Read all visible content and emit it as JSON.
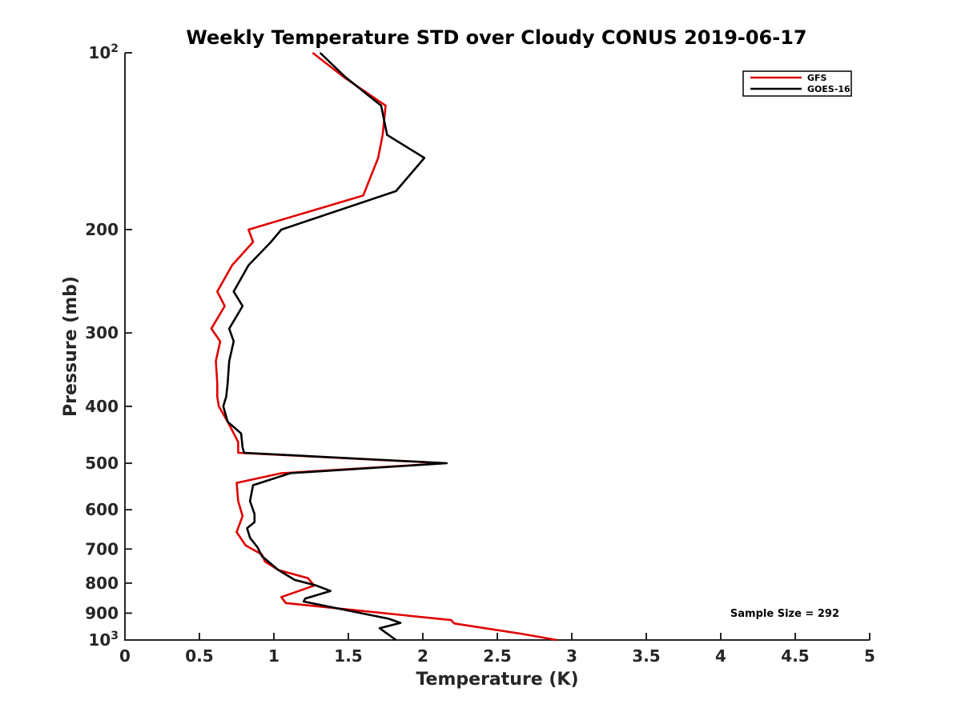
{
  "chart_data": {
    "type": "line",
    "title": "Weekly Temperature STD over Cloudy CONUS 2019-06-17",
    "xlabel": "Temperature (K)",
    "ylabel": "Pressure (mb)",
    "xlim": [
      0,
      5
    ],
    "ylim": [
      100,
      1000
    ],
    "y_scale": "log",
    "y_reversed": true,
    "grid": false,
    "legend_position": "top-right",
    "x_ticks": [
      {
        "value": 0,
        "label": "0"
      },
      {
        "value": 0.5,
        "label": "0.5"
      },
      {
        "value": 1,
        "label": "1"
      },
      {
        "value": 1.5,
        "label": "1.5"
      },
      {
        "value": 2,
        "label": "2"
      },
      {
        "value": 2.5,
        "label": "2.5"
      },
      {
        "value": 3,
        "label": "3"
      },
      {
        "value": 3.5,
        "label": "3.5"
      },
      {
        "value": 4,
        "label": "4"
      },
      {
        "value": 4.5,
        "label": "4.5"
      },
      {
        "value": 5,
        "label": "5"
      }
    ],
    "y_ticks": [
      {
        "value": 100,
        "label": "10",
        "sup": "2"
      },
      {
        "value": 200,
        "label": "200",
        "sup": ""
      },
      {
        "value": 300,
        "label": "300",
        "sup": ""
      },
      {
        "value": 400,
        "label": "400",
        "sup": ""
      },
      {
        "value": 500,
        "label": "500",
        "sup": ""
      },
      {
        "value": 600,
        "label": "600",
        "sup": ""
      },
      {
        "value": 700,
        "label": "700",
        "sup": ""
      },
      {
        "value": 800,
        "label": "800",
        "sup": ""
      },
      {
        "value": 900,
        "label": "900",
        "sup": ""
      },
      {
        "value": 1000,
        "label": "10",
        "sup": "3"
      }
    ],
    "series": [
      {
        "name": "GFS",
        "color": "#e00000",
        "x": [
          1.26,
          1.47,
          1.75,
          1.73,
          1.7,
          1.6,
          0.83,
          0.86,
          0.72,
          0.62,
          0.67,
          0.58,
          0.64,
          0.61,
          0.62,
          0.62,
          0.63,
          0.69,
          0.76,
          0.76,
          2.15,
          1.05,
          0.75,
          0.76,
          0.79,
          0.75,
          0.81,
          0.92,
          0.94,
          1.03,
          1.23,
          1.27,
          1.05,
          1.08,
          2.19,
          2.21,
          2.65,
          2.9
        ],
        "y": [
          100,
          110,
          123,
          138,
          151,
          175,
          200,
          210,
          230,
          255,
          270,
          295,
          310,
          335,
          365,
          385,
          400,
          425,
          460,
          480,
          500,
          520,
          540,
          580,
          615,
          655,
          690,
          715,
          735,
          760,
          785,
          808,
          845,
          865,
          925,
          937,
          975,
          1000
        ]
      },
      {
        "name": "GOES-16",
        "color": "#000000",
        "x": [
          1.31,
          1.48,
          1.72,
          1.76,
          2.01,
          1.82,
          1.05,
          0.98,
          0.83,
          0.73,
          0.79,
          0.7,
          0.73,
          0.7,
          0.69,
          0.68,
          0.66,
          0.69,
          0.78,
          0.79,
          0.8,
          2.16,
          1.11,
          0.86,
          0.84,
          0.87,
          0.87,
          0.82,
          0.84,
          0.89,
          0.92,
          1.03,
          1.14,
          1.28,
          1.38,
          1.21,
          1.2,
          1.77,
          1.85,
          1.71,
          1.82
        ],
        "y": [
          100,
          110,
          123,
          138,
          151,
          172,
          200,
          210,
          230,
          255,
          270,
          295,
          310,
          335,
          365,
          385,
          400,
          425,
          445,
          470,
          480,
          500,
          520,
          545,
          580,
          610,
          630,
          645,
          670,
          695,
          720,
          760,
          790,
          807,
          825,
          850,
          860,
          920,
          935,
          955,
          1000
        ]
      }
    ],
    "annotations": [
      "Sample Size = 292"
    ]
  }
}
